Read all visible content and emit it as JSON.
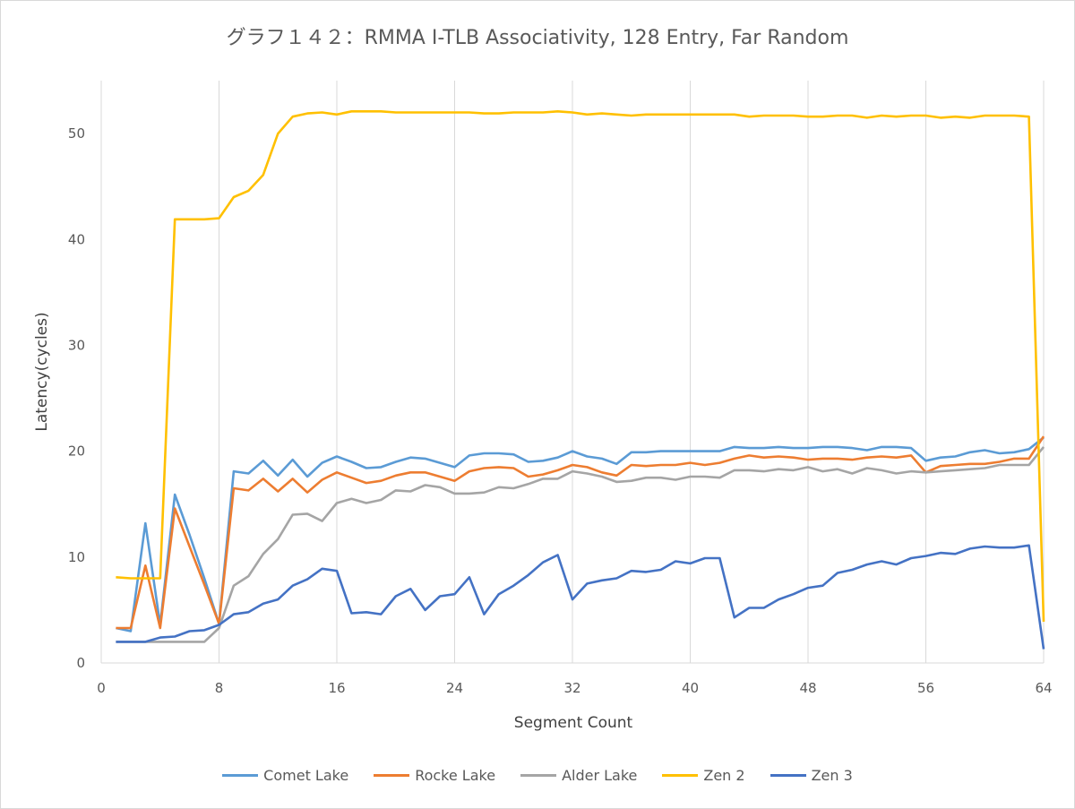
{
  "chart_data": {
    "type": "line",
    "title": "グラフ１４２：RMMA I-TLB Associativity, 128 Entry, Far Random",
    "xlabel": "Segment Count",
    "ylabel": "Latency(cycles)",
    "xlim": [
      0,
      64
    ],
    "ylim": [
      0,
      55
    ],
    "xticks": [
      0,
      8,
      16,
      24,
      32,
      40,
      48,
      56,
      64
    ],
    "yticks": [
      0,
      10,
      20,
      30,
      40,
      50
    ],
    "grid": "vertical",
    "legend_position": "bottom",
    "x": [
      1,
      2,
      3,
      4,
      5,
      6,
      7,
      8,
      9,
      10,
      11,
      12,
      13,
      14,
      15,
      16,
      17,
      18,
      19,
      20,
      21,
      22,
      23,
      24,
      25,
      26,
      27,
      28,
      29,
      30,
      31,
      32,
      33,
      34,
      35,
      36,
      37,
      38,
      39,
      40,
      41,
      42,
      43,
      44,
      45,
      46,
      47,
      48,
      49,
      50,
      51,
      52,
      53,
      54,
      55,
      56,
      57,
      58,
      59,
      60,
      61,
      62,
      63,
      64
    ],
    "series": [
      {
        "name": "Comet Lake",
        "color": "#5b9bd5",
        "values": [
          3.3,
          3.0,
          13.2,
          3.6,
          15.9,
          12.1,
          8.0,
          3.7,
          18.1,
          17.9,
          19.1,
          17.7,
          19.2,
          17.6,
          18.9,
          19.5,
          19.0,
          18.4,
          18.5,
          19.0,
          19.4,
          19.3,
          18.9,
          18.5,
          19.6,
          19.8,
          19.8,
          19.7,
          19.0,
          19.1,
          19.4,
          20.0,
          19.5,
          19.3,
          18.8,
          19.9,
          19.9,
          20.0,
          20.0,
          20.0,
          20.0,
          20.0,
          20.4,
          20.3,
          20.3,
          20.4,
          20.3,
          20.3,
          20.4,
          20.4,
          20.3,
          20.1,
          20.4,
          20.4,
          20.3,
          19.1,
          19.4,
          19.5,
          19.9,
          20.1,
          19.8,
          19.9,
          20.2,
          21.3
        ]
      },
      {
        "name": "Rocke Lake",
        "color": "#ed7d31",
        "values": [
          3.3,
          3.3,
          9.2,
          3.3,
          14.6,
          11.0,
          7.4,
          3.7,
          16.5,
          16.3,
          17.4,
          16.2,
          17.4,
          16.1,
          17.3,
          18.0,
          17.5,
          17.0,
          17.2,
          17.7,
          18.0,
          18.0,
          17.6,
          17.2,
          18.1,
          18.4,
          18.5,
          18.4,
          17.6,
          17.8,
          18.2,
          18.7,
          18.5,
          18.0,
          17.7,
          18.7,
          18.6,
          18.7,
          18.7,
          18.9,
          18.7,
          18.9,
          19.3,
          19.6,
          19.4,
          19.5,
          19.4,
          19.2,
          19.3,
          19.3,
          19.2,
          19.4,
          19.5,
          19.4,
          19.6,
          18.0,
          18.6,
          18.7,
          18.8,
          18.8,
          19.0,
          19.3,
          19.3,
          21.4
        ]
      },
      {
        "name": "Alder Lake",
        "color": "#a5a5a5",
        "values": [
          2.0,
          2.0,
          2.0,
          2.0,
          2.0,
          2.0,
          2.0,
          3.3,
          7.3,
          8.2,
          10.3,
          11.7,
          14.0,
          14.1,
          13.4,
          15.1,
          15.5,
          15.1,
          15.4,
          16.3,
          16.2,
          16.8,
          16.6,
          16.0,
          16.0,
          16.1,
          16.6,
          16.5,
          16.9,
          17.4,
          17.4,
          18.1,
          17.9,
          17.6,
          17.1,
          17.2,
          17.5,
          17.5,
          17.3,
          17.6,
          17.6,
          17.5,
          18.2,
          18.2,
          18.1,
          18.3,
          18.2,
          18.5,
          18.1,
          18.3,
          17.9,
          18.4,
          18.2,
          17.9,
          18.1,
          18.0,
          18.1,
          18.2,
          18.3,
          18.4,
          18.7,
          18.7,
          18.7,
          20.4
        ]
      },
      {
        "name": "Zen 2",
        "color": "#ffc000",
        "values": [
          8.1,
          8.0,
          8.0,
          8.0,
          41.9,
          41.9,
          41.9,
          42.0,
          44.0,
          44.6,
          46.1,
          50.0,
          51.6,
          51.9,
          52.0,
          51.8,
          52.1,
          52.1,
          52.1,
          52.0,
          52.0,
          52.0,
          52.0,
          52.0,
          52.0,
          51.9,
          51.9,
          52.0,
          52.0,
          52.0,
          52.1,
          52.0,
          51.8,
          51.9,
          51.8,
          51.7,
          51.8,
          51.8,
          51.8,
          51.8,
          51.8,
          51.8,
          51.8,
          51.6,
          51.7,
          51.7,
          51.7,
          51.6,
          51.6,
          51.7,
          51.7,
          51.5,
          51.7,
          51.6,
          51.7,
          51.7,
          51.5,
          51.6,
          51.5,
          51.7,
          51.7,
          51.7,
          51.6,
          3.9
        ]
      },
      {
        "name": "Zen 3",
        "color": "#4472c4",
        "values": [
          2.0,
          2.0,
          2.0,
          2.4,
          2.5,
          3.0,
          3.1,
          3.6,
          4.6,
          4.8,
          5.6,
          6.0,
          7.3,
          7.9,
          8.9,
          8.7,
          4.7,
          4.8,
          4.6,
          6.3,
          7.0,
          5.0,
          6.3,
          6.5,
          8.1,
          4.6,
          6.5,
          7.3,
          8.3,
          9.5,
          10.2,
          6.0,
          7.5,
          7.8,
          8.0,
          8.7,
          8.6,
          8.8,
          9.6,
          9.4,
          9.9,
          9.9,
          4.3,
          5.2,
          5.2,
          6.0,
          6.5,
          7.1,
          7.3,
          8.5,
          8.8,
          9.3,
          9.6,
          9.3,
          9.9,
          10.1,
          10.4,
          10.3,
          10.8,
          11.0,
          10.9,
          10.9,
          11.1,
          1.3
        ]
      }
    ]
  }
}
